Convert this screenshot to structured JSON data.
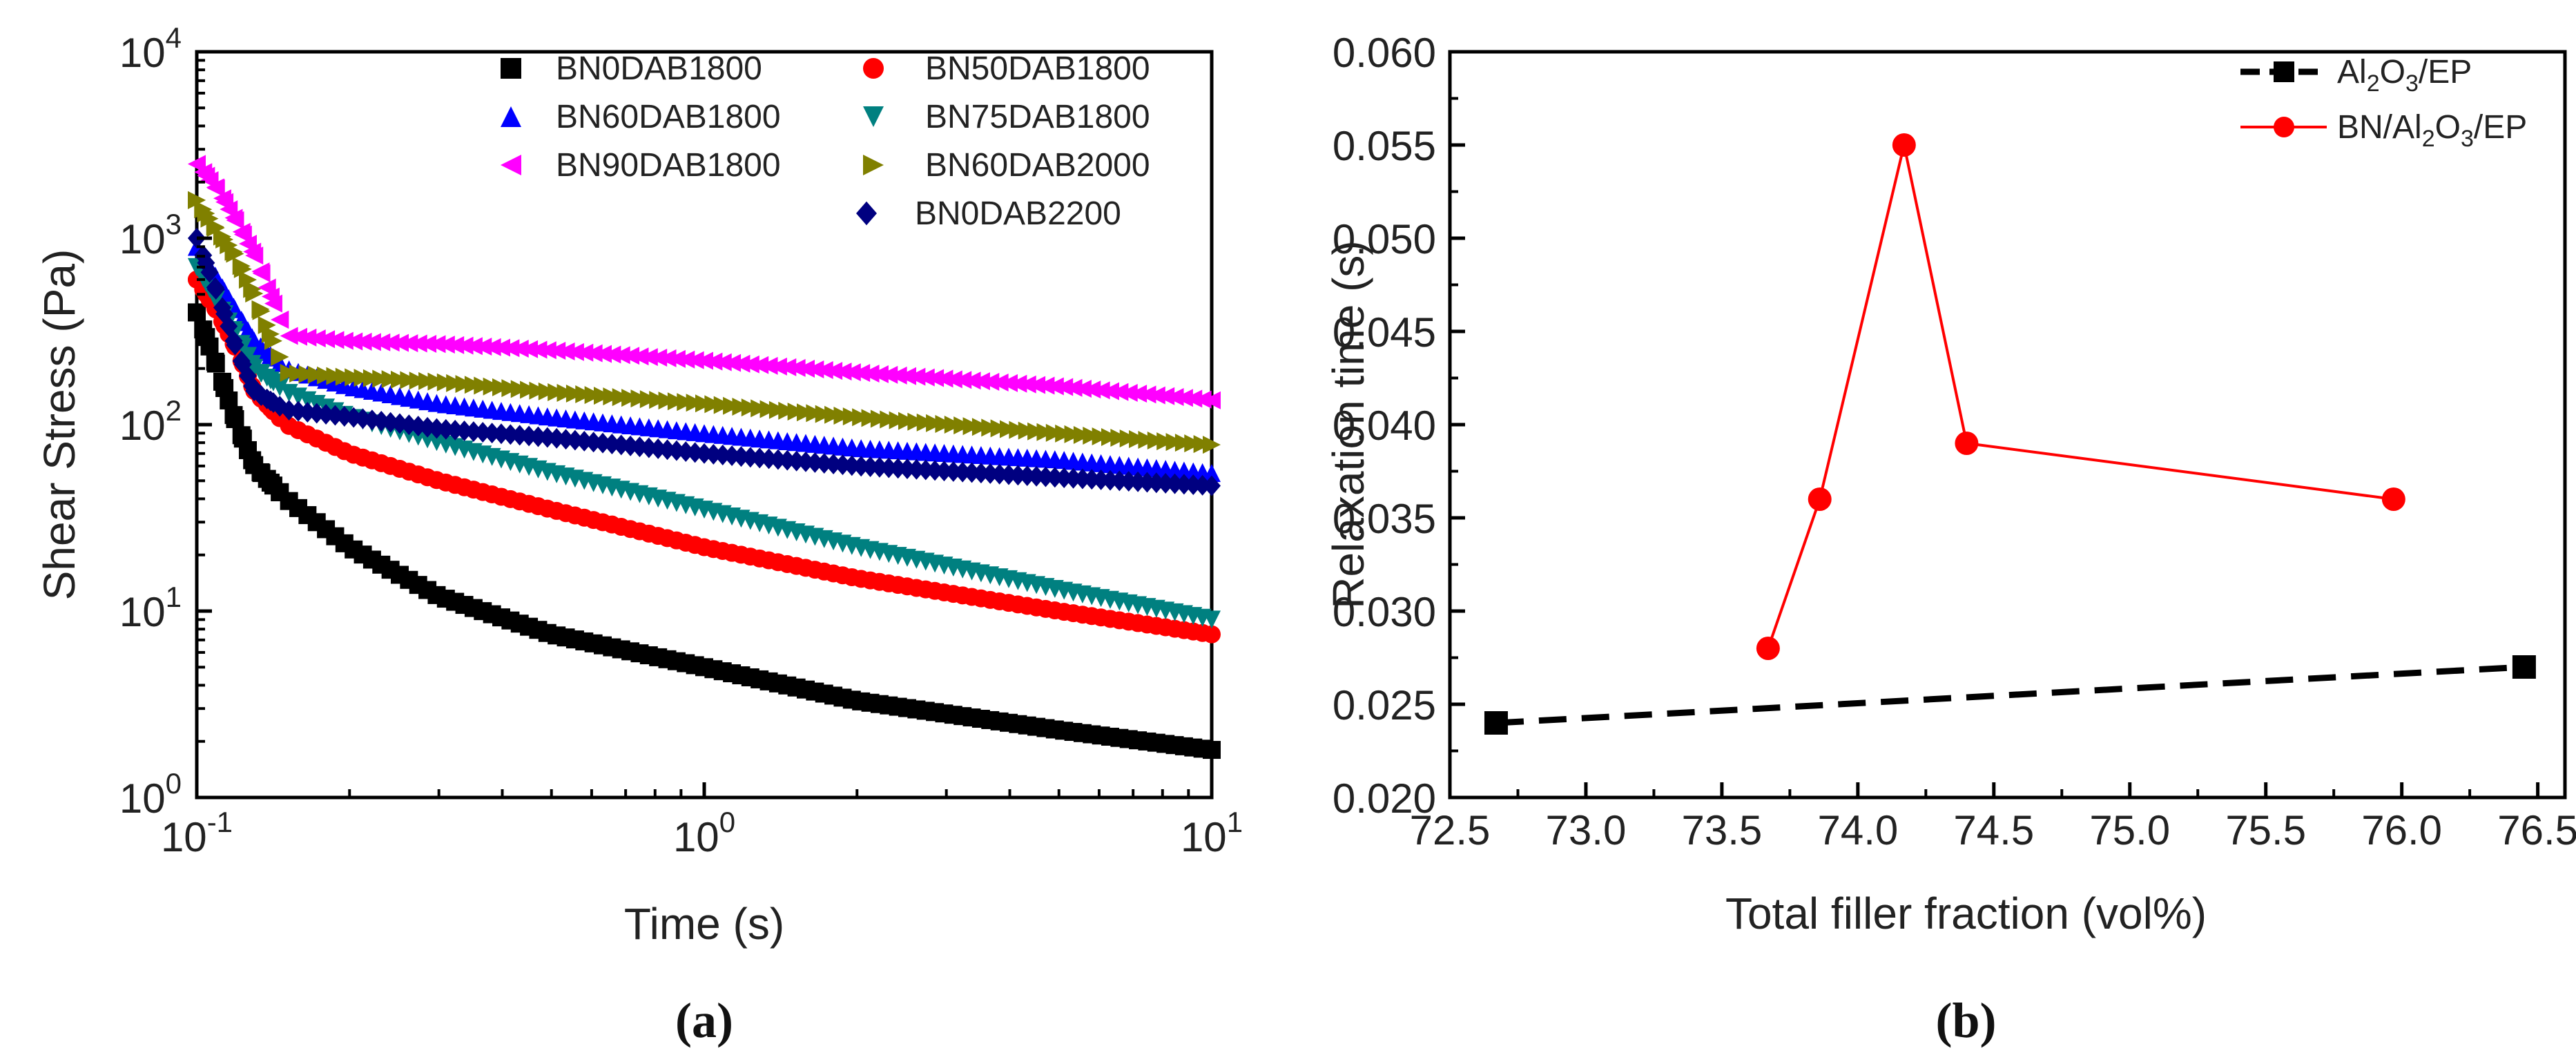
{
  "chart_data": [
    {
      "panel": "(a)",
      "type": "line",
      "xscale": "log",
      "yscale": "log",
      "xlabel": "Time (s)",
      "ylabel": "Shear Stress (Pa)",
      "xlim": [
        0.1,
        10
      ],
      "ylim": [
        1,
        10000
      ],
      "xticks": [
        {
          "base": "10",
          "exp": "-1",
          "value": 0.1
        },
        {
          "base": "10",
          "exp": "0",
          "value": 1
        },
        {
          "base": "10",
          "exp": "1",
          "value": 10
        }
      ],
      "yticks": [
        {
          "base": "10",
          "exp": "0",
          "value": 1
        },
        {
          "base": "10",
          "exp": "1",
          "value": 10
        },
        {
          "base": "10",
          "exp": "2",
          "value": 100
        },
        {
          "base": "10",
          "exp": "3",
          "value": 1000
        },
        {
          "base": "10",
          "exp": "4",
          "value": 10000
        }
      ],
      "legend_position": "top-right",
      "series": [
        {
          "name": "BN0DAB1800",
          "color": "#000000",
          "marker": "square",
          "x": [
            0.1,
            0.11,
            0.12,
            0.13,
            0.15,
            0.2,
            0.3,
            0.5,
            1,
            2,
            5,
            10
          ],
          "values": [
            400,
            200,
            100,
            60,
            40,
            22,
            12,
            7.5,
            5,
            3.3,
            2.3,
            1.8
          ]
        },
        {
          "name": "BN50DAB1800",
          "color": "#ff0000",
          "marker": "circle",
          "x": [
            0.1,
            0.11,
            0.12,
            0.13,
            0.15,
            0.2,
            0.3,
            0.5,
            1,
            2,
            5,
            10
          ],
          "values": [
            600,
            400,
            250,
            150,
            100,
            70,
            50,
            35,
            22,
            15,
            10,
            7.5
          ]
        },
        {
          "name": "BN60DAB1800",
          "color": "#0000ff",
          "marker": "triangle-up",
          "x": [
            0.1,
            0.11,
            0.12,
            0.13,
            0.15,
            0.2,
            0.3,
            0.5,
            1,
            2,
            5,
            10
          ],
          "values": [
            900,
            600,
            400,
            280,
            200,
            160,
            130,
            110,
            90,
            75,
            65,
            55
          ]
        },
        {
          "name": "BN75DAB1800",
          "color": "#008080",
          "marker": "triangle-down",
          "x": [
            0.1,
            0.11,
            0.12,
            0.13,
            0.15,
            0.2,
            0.3,
            0.5,
            1,
            2,
            5,
            10
          ],
          "values": [
            700,
            450,
            300,
            200,
            150,
            110,
            80,
            55,
            35,
            22,
            13,
            9
          ]
        },
        {
          "name": "BN90DAB1800",
          "color": "#ff00ff",
          "marker": "triangle-left",
          "x": [
            0.1,
            0.11,
            0.12,
            0.13,
            0.15,
            0.2,
            0.3,
            0.5,
            1,
            2,
            5,
            10
          ],
          "values": [
            2500,
            1800,
            1200,
            800,
            300,
            280,
            270,
            250,
            220,
            190,
            160,
            135
          ]
        },
        {
          "name": "BN60DAB2000",
          "color": "#808000",
          "marker": "triangle-right",
          "x": [
            0.1,
            0.11,
            0.12,
            0.13,
            0.15,
            0.2,
            0.3,
            0.5,
            1,
            2,
            5,
            10
          ],
          "values": [
            1600,
            1100,
            800,
            500,
            190,
            180,
            170,
            150,
            130,
            110,
            90,
            78
          ]
        },
        {
          "name": "BN0DAB2200",
          "color": "#000080",
          "marker": "diamond",
          "x": [
            0.1,
            0.11,
            0.12,
            0.13,
            0.15,
            0.2,
            0.3,
            0.5,
            1,
            2,
            5,
            10
          ],
          "values": [
            1000,
            500,
            250,
            150,
            120,
            110,
            95,
            85,
            70,
            60,
            52,
            47
          ]
        }
      ]
    },
    {
      "panel": "(b)",
      "type": "line",
      "xlabel": "Total filler fraction (vol%)",
      "ylabel": "Relaxation time (s)",
      "xlim": [
        72.5,
        76.6
      ],
      "ylim": [
        0.02,
        0.06
      ],
      "xticks": [
        "72.5",
        "73.0",
        "73.5",
        "74.0",
        "74.5",
        "75.0",
        "75.5",
        "76.0",
        "76.5"
      ],
      "yticks": [
        "0.020",
        "0.025",
        "0.030",
        "0.035",
        "0.040",
        "0.045",
        "0.050",
        "0.055",
        "0.060"
      ],
      "legend_position": "top-right",
      "series": [
        {
          "name": "Al2O3/EP",
          "label_parts": [
            "Al",
            "2",
            "O",
            "3",
            "/EP"
          ],
          "color": "#000000",
          "marker": "square",
          "line": "dashed",
          "x": [
            72.67,
            76.45
          ],
          "values": [
            0.024,
            0.027
          ]
        },
        {
          "name": "BN/Al2O3/EP",
          "label_parts": [
            "BN/Al",
            "2",
            "O",
            "3",
            "/EP"
          ],
          "color": "#ff0000",
          "marker": "circle",
          "line": "solid",
          "x": [
            73.67,
            73.86,
            74.17,
            74.4,
            75.97
          ],
          "values": [
            0.028,
            0.036,
            0.055,
            0.039,
            0.036
          ]
        }
      ]
    }
  ]
}
